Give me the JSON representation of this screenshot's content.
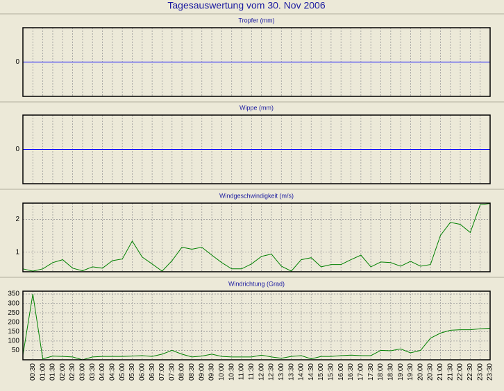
{
  "title": "Tagesauswertung vom 30. Nov 2006",
  "chart_data": [
    {
      "type": "line",
      "title": "Tropfer (mm)",
      "ylim": [
        -1,
        1
      ],
      "yticks": [
        0
      ],
      "grid": true,
      "zero_line_color": "#0000ff"
    },
    {
      "type": "line",
      "title": "Wippe (mm)",
      "ylim": [
        -1,
        1
      ],
      "yticks": [
        0
      ],
      "grid": true,
      "zero_line_color": "#0000ff"
    },
    {
      "type": "line",
      "title": "Windgeschwindigkeit (m/s)",
      "ylim": [
        0.4,
        2.5
      ],
      "yticks": [
        1,
        2
      ],
      "grid": true,
      "series": [
        {
          "name": "Windgeschwindigkeit",
          "color": "#008000",
          "values": [
            0.49,
            0.42,
            0.49,
            0.68,
            0.77,
            0.51,
            0.43,
            0.55,
            0.51,
            0.74,
            0.79,
            1.34,
            0.85,
            0.64,
            0.42,
            0.74,
            1.15,
            1.09,
            1.15,
            0.91,
            0.68,
            0.49,
            0.49,
            0.64,
            0.87,
            0.94,
            0.57,
            0.42,
            0.77,
            0.83,
            0.55,
            0.62,
            0.62,
            0.77,
            0.91,
            0.55,
            0.7,
            0.68,
            0.57,
            0.72,
            0.57,
            0.62,
            1.51,
            1.91,
            1.85,
            1.6,
            2.45,
            2.49
          ]
        }
      ]
    },
    {
      "type": "line",
      "title": "Windrichtung (Grad)",
      "ylim": [
        0,
        365
      ],
      "yticks": [
        50,
        100,
        150,
        200,
        250,
        300,
        350
      ],
      "grid": true,
      "categories": [
        null,
        "00:30",
        "01:00",
        "01:30",
        "02:00",
        "02:30",
        "03:00",
        "03:30",
        "04:00",
        "04:30",
        "05:00",
        "05:30",
        "06:00",
        "06:30",
        "07:00",
        "07:30",
        "08:00",
        "08:30",
        "09:00",
        "09:30",
        "10:00",
        "10:30",
        "11:00",
        "11:30",
        "12:00",
        "12:30",
        "13:00",
        "13:30",
        "14:00",
        "14:30",
        "15:00",
        "15:30",
        "16:00",
        "16:30",
        "17:00",
        "17:30",
        "18:00",
        "18:30",
        "19:00",
        "19:30",
        "20:00",
        "20:30",
        "21:00",
        "21:30",
        "22:00",
        "22:30",
        "23:00",
        "23:30"
      ],
      "series": [
        {
          "name": "Windrichtung",
          "color": "#008000",
          "values": [
            25,
            350,
            5,
            20,
            18,
            15,
            0,
            15,
            18,
            18,
            18,
            20,
            22,
            18,
            30,
            50,
            30,
            15,
            20,
            30,
            18,
            15,
            15,
            15,
            25,
            15,
            8,
            18,
            22,
            5,
            18,
            18,
            22,
            25,
            22,
            22,
            50,
            48,
            58,
            37,
            50,
            115,
            142,
            157,
            160,
            160,
            165,
            168
          ]
        }
      ]
    }
  ]
}
